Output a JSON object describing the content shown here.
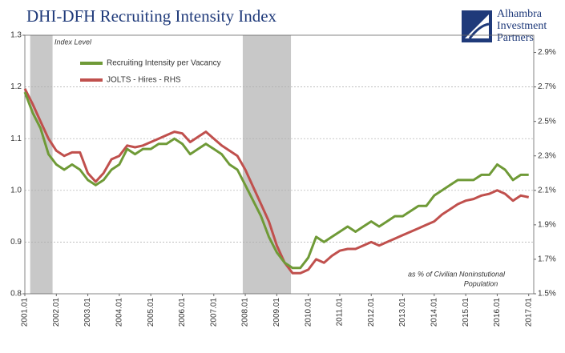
{
  "chart_data": {
    "type": "line",
    "title": "DHI-DFH Recruiting Intensity Index",
    "y_axis_label": "Index Level",
    "annotation": [
      "as % of Civilian Noninstutional",
      "Population"
    ],
    "logo": [
      "Alhambra",
      "Investment",
      "Partners"
    ],
    "x": [
      2001,
      2001.25,
      2001.5,
      2001.75,
      2002,
      2002.25,
      2002.5,
      2002.75,
      2003,
      2003.25,
      2003.5,
      2003.75,
      2004,
      2004.25,
      2004.5,
      2004.75,
      2005,
      2005.25,
      2005.5,
      2005.75,
      2006,
      2006.25,
      2006.5,
      2006.75,
      2007,
      2007.25,
      2007.5,
      2007.75,
      2008,
      2008.25,
      2008.5,
      2008.75,
      2009,
      2009.25,
      2009.5,
      2009.75,
      2010,
      2010.25,
      2010.5,
      2010.75,
      2011,
      2011.25,
      2011.5,
      2011.75,
      2012,
      2012.25,
      2012.5,
      2012.75,
      2013,
      2013.25,
      2013.5,
      2013.75,
      2014,
      2014.25,
      2014.5,
      2014.75,
      2015,
      2015.25,
      2015.5,
      2015.75,
      2016,
      2016.25,
      2016.5,
      2016.75,
      2017
    ],
    "xlim": [
      2001,
      2017.16
    ],
    "xticks": [
      {
        "value": 2001,
        "label": "2001.01"
      },
      {
        "value": 2002,
        "label": "2002.01"
      },
      {
        "value": 2003,
        "label": "2003.01"
      },
      {
        "value": 2004,
        "label": "2004.01"
      },
      {
        "value": 2005,
        "label": "2005.01"
      },
      {
        "value": 2006,
        "label": "2006.01"
      },
      {
        "value": 2007,
        "label": "2007.01"
      },
      {
        "value": 2008,
        "label": "2008.01"
      },
      {
        "value": 2009,
        "label": "2009.01"
      },
      {
        "value": 2010,
        "label": "2010.01"
      },
      {
        "value": 2011,
        "label": "2011.01"
      },
      {
        "value": 2012,
        "label": "2012.01"
      },
      {
        "value": 2013,
        "label": "2013.01"
      },
      {
        "value": 2014,
        "label": "2014.01"
      },
      {
        "value": 2015,
        "label": "2015.01"
      },
      {
        "value": 2016,
        "label": "2016.01"
      },
      {
        "value": 2017,
        "label": "2017.01"
      }
    ],
    "ylim": [
      0.8,
      1.3
    ],
    "yticks": [
      0.8,
      0.9,
      {
        "value": 1,
        "label": "1.0"
      },
      1.1,
      1.2,
      1.3
    ],
    "y2lim": [
      1.5,
      3.0
    ],
    "y2ticks": [
      {
        "value": 1.5,
        "label": "1.5%"
      },
      {
        "value": 1.7,
        "label": "1.7%"
      },
      {
        "value": 1.9,
        "label": "1.9%"
      },
      {
        "value": 2.1,
        "label": "2.1%"
      },
      {
        "value": 2.3,
        "label": "2.3%"
      },
      {
        "value": 2.5,
        "label": "2.5%"
      },
      {
        "value": 2.7,
        "label": "2.7%"
      },
      {
        "value": 2.9,
        "label": "2.9%"
      }
    ],
    "grid": true,
    "shaded_regions": [
      [
        2001.17,
        2001.88
      ],
      [
        2007.92,
        2009.45
      ]
    ],
    "series": [
      {
        "name": "Recruiting Intensity per Vacancy",
        "color": "#6f9a37",
        "values": [
          1.19,
          1.15,
          1.12,
          1.07,
          1.05,
          1.04,
          1.05,
          1.04,
          1.02,
          1.01,
          1.02,
          1.04,
          1.05,
          1.08,
          1.07,
          1.08,
          1.08,
          1.09,
          1.09,
          1.1,
          1.09,
          1.07,
          1.08,
          1.09,
          1.08,
          1.07,
          1.05,
          1.04,
          1.01,
          0.98,
          0.95,
          0.91,
          0.88,
          0.86,
          0.85,
          0.85,
          0.87,
          0.91,
          0.9,
          0.91,
          0.92,
          0.93,
          0.92,
          0.93,
          0.94,
          0.93,
          0.94,
          0.95,
          0.95,
          0.96,
          0.97,
          0.97,
          0.99,
          1.0,
          1.01,
          1.02,
          1.02,
          1.02,
          1.03,
          1.03,
          1.05,
          1.04,
          1.02,
          1.03,
          1.03
        ]
      },
      {
        "name": "JOLTS - Hires - RHS",
        "color": "#c0504d",
        "axis": "y2",
        "values": [
          2.69,
          2.6,
          2.5,
          2.4,
          2.33,
          2.3,
          2.32,
          2.32,
          2.2,
          2.15,
          2.2,
          2.28,
          2.3,
          2.36,
          2.35,
          2.36,
          2.38,
          2.4,
          2.42,
          2.44,
          2.43,
          2.38,
          2.41,
          2.44,
          2.4,
          2.36,
          2.33,
          2.3,
          2.22,
          2.12,
          2.02,
          1.92,
          1.78,
          1.68,
          1.62,
          1.62,
          1.64,
          1.7,
          1.68,
          1.72,
          1.75,
          1.76,
          1.76,
          1.78,
          1.8,
          1.78,
          1.8,
          1.82,
          1.84,
          1.86,
          1.88,
          1.9,
          1.92,
          1.96,
          1.99,
          2.02,
          2.04,
          2.05,
          2.07,
          2.08,
          2.1,
          2.08,
          2.04,
          2.07,
          2.06
        ]
      }
    ]
  }
}
